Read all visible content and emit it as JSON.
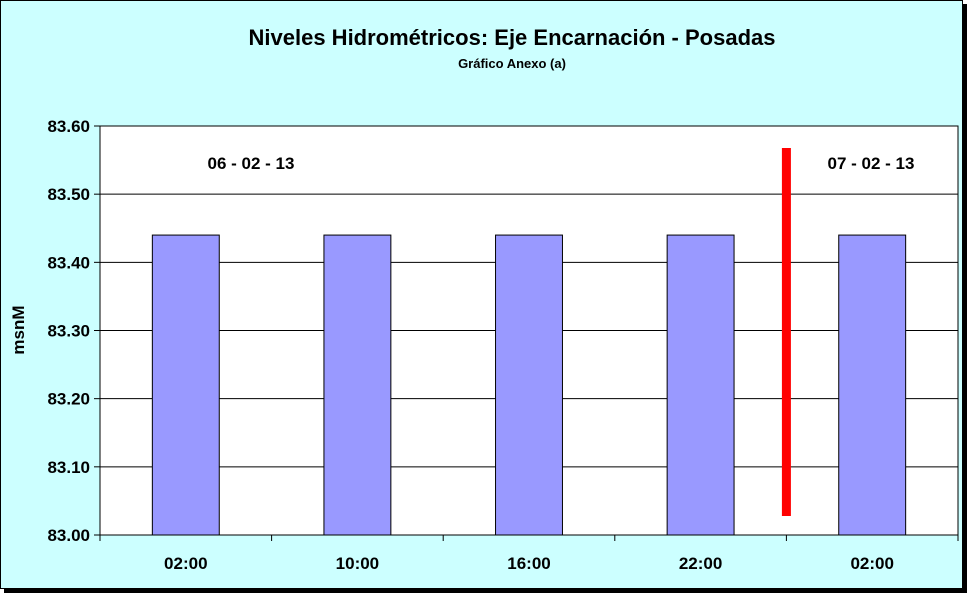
{
  "chart_data": {
    "type": "bar",
    "title": "Niveles Hidrométricos: Eje Encarnación - Posadas",
    "subtitle": "Gráfico Anexo (a)",
    "ylabel": "msnM",
    "xlabel": "",
    "categories": [
      "02:00",
      "10:00",
      "16:00",
      "22:00",
      "02:00"
    ],
    "values": [
      83.44,
      83.44,
      83.44,
      83.44,
      83.44
    ],
    "ylim": [
      83.0,
      83.6
    ],
    "yticks": [
      "83.00",
      "83.10",
      "83.20",
      "83.30",
      "83.40",
      "83.50",
      "83.60"
    ],
    "grid": true,
    "legend": "none",
    "date_labels": [
      "06 - 02 - 13",
      "07 - 02 - 13"
    ],
    "day_separator_between": [
      3,
      4
    ],
    "colors": {
      "background": "#ccffff",
      "plot_area": "#ffffff",
      "bar": "#9999ff",
      "separator": "#ff0000",
      "grid": "#000000"
    }
  }
}
